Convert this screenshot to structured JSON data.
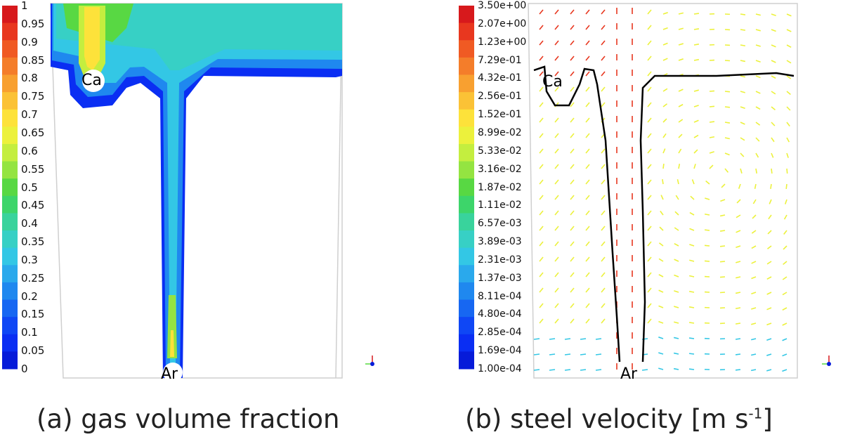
{
  "panel_a": {
    "caption": "(a) gas volume fraction",
    "legend_labels": [
      "1",
      "0.95",
      "0.9",
      "0.85",
      "0.8",
      "0.75",
      "0.7",
      "0.65",
      "0.6",
      "0.55",
      "0.5",
      "0.45",
      "0.4",
      "0.35",
      "0.3",
      "0.25",
      "0.2",
      "0.15",
      "0.1",
      "0.05",
      "0"
    ],
    "label_ca": "Ca",
    "label_ar": "Ar"
  },
  "panel_b": {
    "caption_main": "(b) steel velocity [m s",
    "caption_sup": "-1",
    "caption_end": "]",
    "legend_labels": [
      "3.50e+00",
      "2.07e+00",
      "1.23e+00",
      "7.29e-01",
      "4.32e-01",
      "2.56e-01",
      "1.52e-01",
      "8.99e-02",
      "5.33e-02",
      "3.16e-02",
      "1.87e-02",
      "1.11e-02",
      "6.57e-03",
      "3.89e-03",
      "2.31e-03",
      "1.37e-03",
      "8.11e-04",
      "4.80e-04",
      "2.85e-04",
      "1.69e-04",
      "1.00e-04"
    ],
    "label_ca": "Ca",
    "label_ar": "Ar"
  },
  "colormap": [
    "#d7191c",
    "#e8371f",
    "#f05a23",
    "#f47d2a",
    "#f8a030",
    "#fbc236",
    "#fde23a",
    "#ecf13c",
    "#c4ee3f",
    "#94e441",
    "#58d843",
    "#3dd56a",
    "#39d39c",
    "#37d0c5",
    "#33c7e5",
    "#2aa9ec",
    "#1f88ef",
    "#1767f2",
    "#0f47f5",
    "#0a2ef3",
    "#061bd9"
  ]
}
